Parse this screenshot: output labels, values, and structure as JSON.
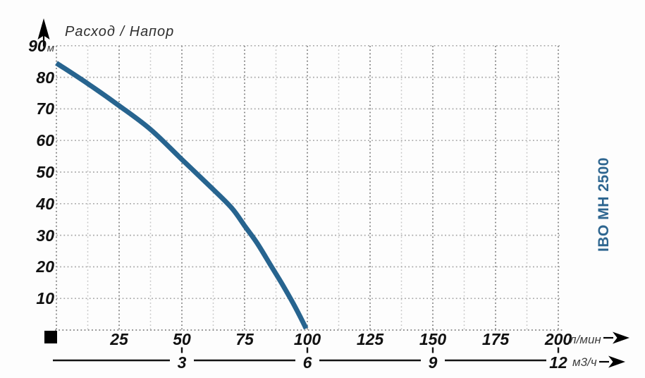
{
  "title": "Расход / Напор",
  "series_label": "IBO MH 2500",
  "y_axis": {
    "unit": "м",
    "ticks": [
      90,
      80,
      70,
      60,
      50,
      40,
      30,
      20,
      10
    ]
  },
  "x_axis": {
    "unit": "л/мин",
    "ticks": [
      25,
      50,
      75,
      100,
      125,
      150,
      175,
      200
    ]
  },
  "x_axis_secondary": {
    "unit": "м3/ч",
    "ticks": [
      3,
      6,
      9,
      12
    ]
  },
  "colors": {
    "curve": "#27648f",
    "series_label": "#2e6690",
    "grid_major": "#8f8f8f",
    "grid_minor": "#c5c5c5",
    "grid_horizontal": "#a8a8a8",
    "axis_black": "#141414",
    "text": "#111111",
    "unit_text": "#3f3f3f",
    "background": "#fdfdfd"
  },
  "chart_data": {
    "type": "line",
    "title": "Расход / Напор",
    "xlabel": "л/мин (secondary scale: м3/ч)",
    "ylabel": "Напор, м",
    "xlim": [
      0,
      200
    ],
    "ylim": [
      0,
      90
    ],
    "x_ticks": [
      25,
      50,
      75,
      100,
      125,
      150,
      175,
      200
    ],
    "x_ticks_secondary_map": {
      "3": 50,
      "6": 100,
      "9": 150,
      "12": 200
    },
    "y_ticks": [
      10,
      20,
      30,
      40,
      50,
      60,
      70,
      80,
      90
    ],
    "grid": "dotted; vertical minor every 12.5 л/мин, horizontal every 10 м",
    "legend_position": "right-rotated",
    "series": [
      {
        "name": "IBO MH 2500",
        "points": [
          [
            0,
            84.5
          ],
          [
            12.5,
            78
          ],
          [
            25,
            71
          ],
          [
            37.5,
            63.5
          ],
          [
            50,
            54
          ],
          [
            62.5,
            44.5
          ],
          [
            70,
            38.5
          ],
          [
            75,
            33
          ],
          [
            80,
            27.5
          ],
          [
            85,
            21
          ],
          [
            90,
            14.5
          ],
          [
            95,
            7.5
          ],
          [
            99.5,
            0.5
          ]
        ]
      }
    ]
  }
}
